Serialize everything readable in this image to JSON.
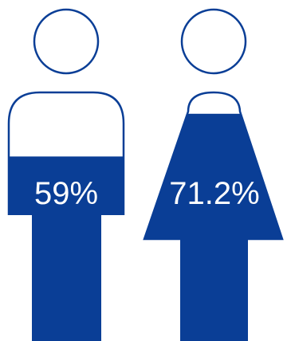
{
  "chart_data": {
    "type": "pictogram",
    "color": "#0a3e96",
    "series": [
      {
        "icon": "male-figure-icon",
        "value": 59,
        "label": "59%"
      },
      {
        "icon": "female-figure-icon",
        "value": 71.2,
        "label": "71.2%"
      }
    ]
  }
}
